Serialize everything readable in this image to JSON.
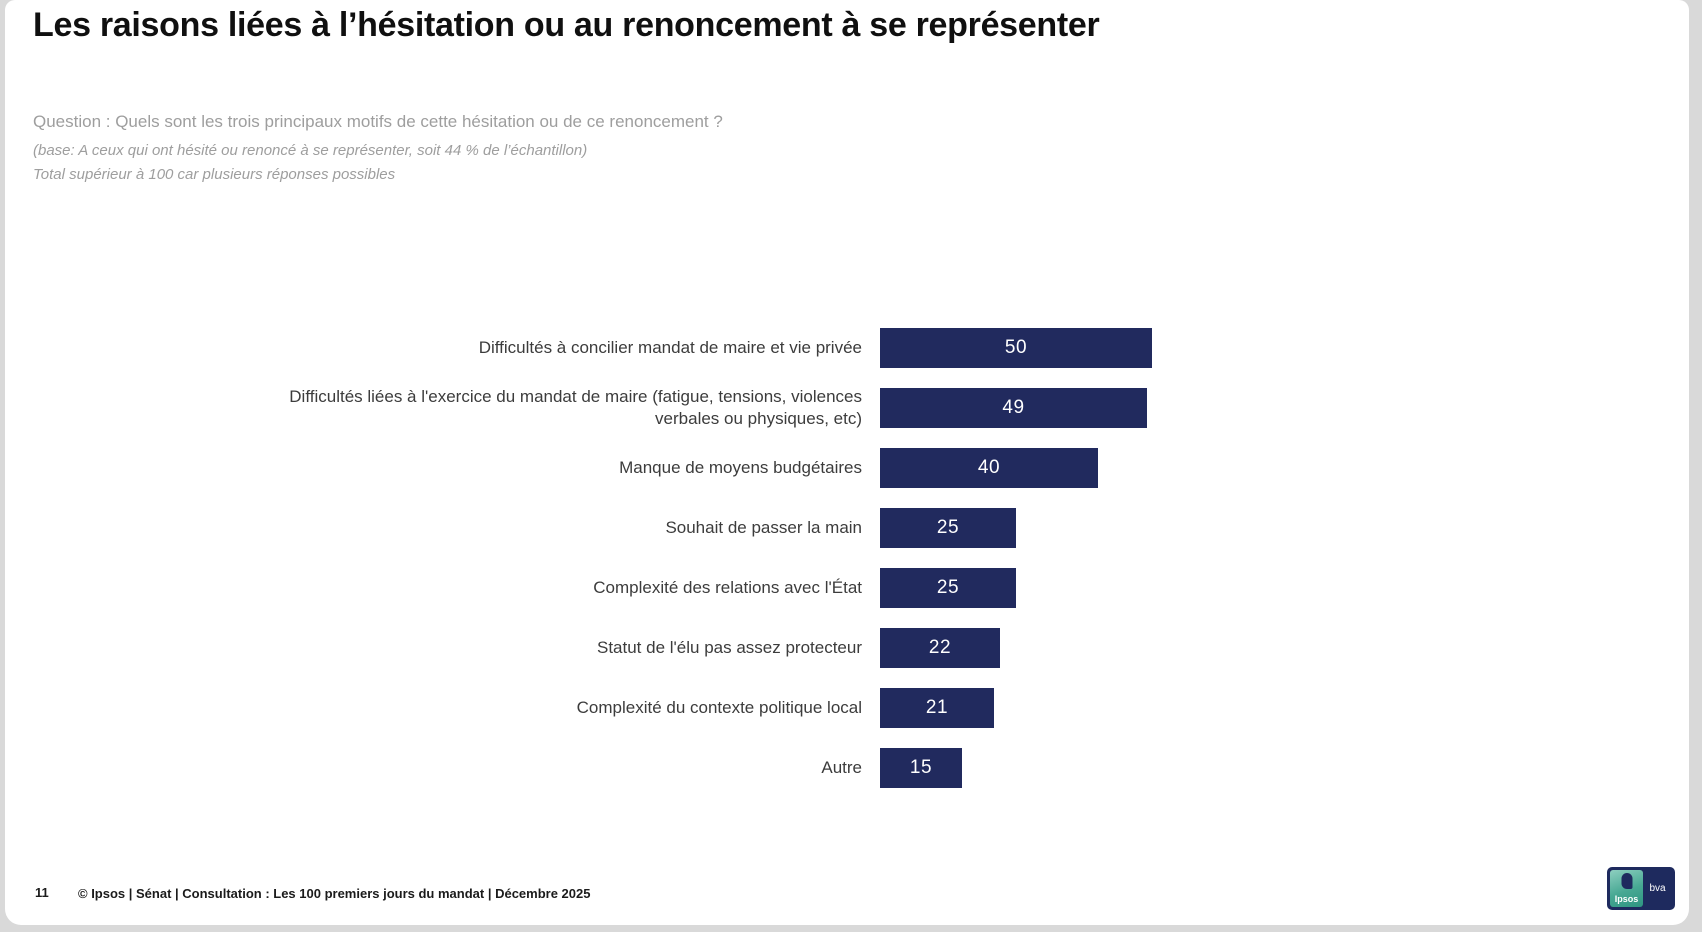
{
  "slide": {
    "title": "Les raisons liées à l’hésitation ou au renoncement à se représenter",
    "question": "Question : Quels sont les trois principaux motifs de cette hésitation ou de ce renoncement ?",
    "base_note": "(base: A ceux qui ont hésité ou renoncé à se représenter, soit 44 % de l’échantillon)",
    "multi_note": "Total supérieur à 100 car plusieurs réponses possibles"
  },
  "chart_data": {
    "type": "bar",
    "orientation": "horizontal",
    "title": "Les raisons liées à l’hésitation ou au renoncement à se représenter",
    "categories": [
      "Difficultés à concilier mandat de maire et vie privée",
      "Difficultés liées à l'exercice du mandat de maire (fatigue, tensions, violences verbales ou physiques, etc)",
      "Manque de moyens budgétaires",
      "Souhait de passer la main",
      "Complexité des relations avec l'État",
      "Statut de l'élu pas assez protecteur",
      "Complexité du contexte politique local",
      "Autre"
    ],
    "values": [
      50,
      49,
      40,
      25,
      25,
      22,
      21,
      15
    ],
    "unit": "%",
    "xlim": [
      0,
      50
    ],
    "grid": false,
    "axes_visible": false,
    "value_labels": "centered-inside-bar",
    "bar_color": "#212a5e",
    "value_label_color": "#ffffff",
    "category_label_color": "#3c3c3c"
  },
  "footer": {
    "page_number": "11",
    "source": "© Ipsos | Sénat | Consultation : Les 100 premiers jours du mandat | Décembre 2025"
  },
  "logo": {
    "brand_left": "Ipsos",
    "brand_right": "bva"
  }
}
